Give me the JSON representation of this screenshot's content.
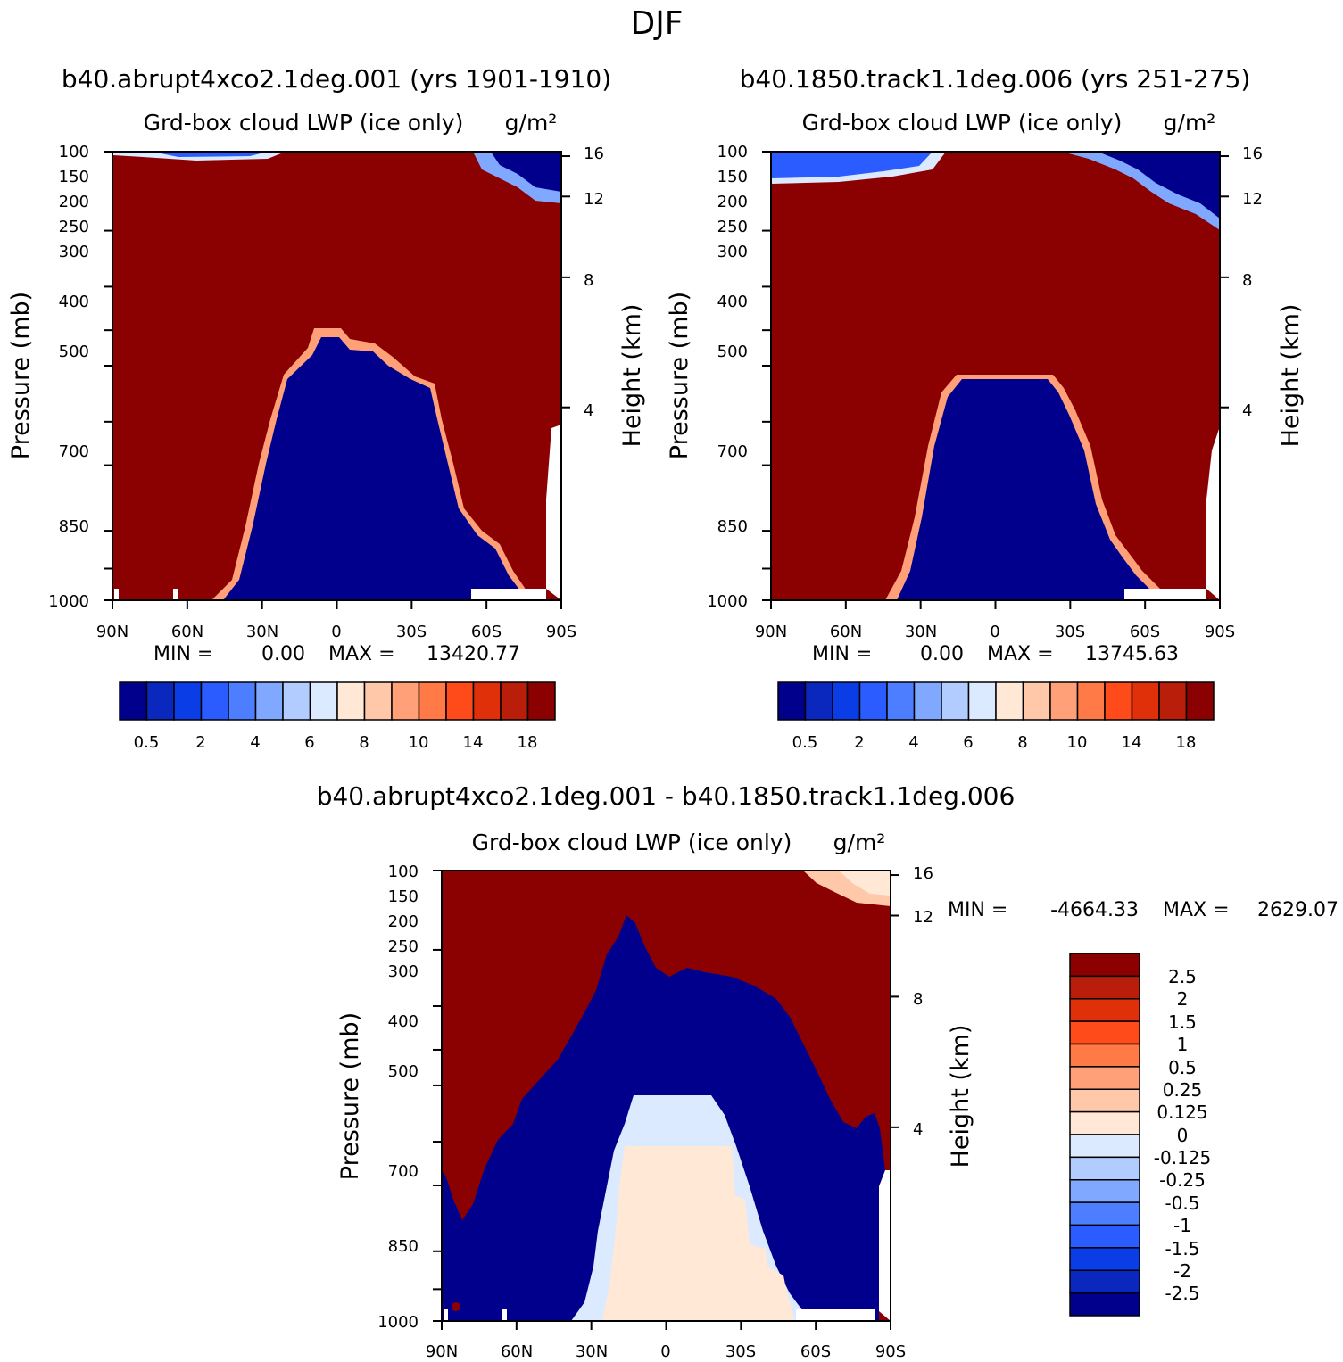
{
  "title": "DJF",
  "chart_data": [
    {
      "type": "heatmap",
      "id": "p1",
      "case_title": "b40.abrupt4xco2.1deg.001 (yrs 1901-1910)",
      "variable": "Grd-box cloud LWP (ice only)",
      "units": "g/m²",
      "ylabel": "Pressure (mb)",
      "ylabel_right": "Height (km)",
      "x_ticks": [
        "90N",
        "60N",
        "30N",
        "0",
        "30S",
        "60S",
        "90S"
      ],
      "y_ticks": [
        "100",
        "150",
        "200",
        "250",
        "300",
        "400",
        "500",
        "700",
        "850",
        "1000"
      ],
      "height_ticks": [
        "16",
        "12",
        "8",
        "4"
      ],
      "min_label": "MIN =",
      "min_value": "0.00",
      "max_label": "MAX =",
      "max_value": "13420.77",
      "colorbar_labels": [
        "0.5",
        "2",
        "4",
        "6",
        "8",
        "10",
        "14",
        "18"
      ]
    },
    {
      "type": "heatmap",
      "id": "p2",
      "case_title": "b40.1850.track1.1deg.006 (yrs 251-275)",
      "variable": "Grd-box cloud LWP (ice only)",
      "units": "g/m²",
      "ylabel": "Pressure (mb)",
      "ylabel_right": "Height (km)",
      "x_ticks": [
        "90N",
        "60N",
        "30N",
        "0",
        "30S",
        "60S",
        "90S"
      ],
      "y_ticks": [
        "100",
        "150",
        "200",
        "250",
        "300",
        "400",
        "500",
        "700",
        "850",
        "1000"
      ],
      "height_ticks": [
        "16",
        "12",
        "8",
        "4"
      ],
      "min_label": "MIN =",
      "min_value": "0.00",
      "max_label": "MAX =",
      "max_value": "13745.63",
      "colorbar_labels": [
        "0.5",
        "2",
        "4",
        "6",
        "8",
        "10",
        "14",
        "18"
      ]
    },
    {
      "type": "heatmap",
      "id": "p3",
      "case_title": "b40.abrupt4xco2.1deg.001 - b40.1850.track1.1deg.006",
      "variable": "Grd-box cloud LWP (ice only)",
      "units": "g/m²",
      "ylabel": "Pressure (mb)",
      "ylabel_right": "Height (km)",
      "x_ticks": [
        "90N",
        "60N",
        "30N",
        "0",
        "30S",
        "60S",
        "90S"
      ],
      "y_ticks": [
        "100",
        "150",
        "200",
        "250",
        "300",
        "400",
        "500",
        "700",
        "850",
        "1000"
      ],
      "height_ticks": [
        "16",
        "12",
        "8",
        "4"
      ],
      "min_label": "MIN =",
      "min_value": "-4664.33",
      "max_label": "MAX =",
      "max_value": "2629.07",
      "colorbar_labels": [
        "2.5",
        "2",
        "1.5",
        "1",
        "0.5",
        "0.25",
        "0.125",
        "0",
        "-0.125",
        "-0.25",
        "-0.5",
        "-1",
        "-1.5",
        "-2",
        "-2.5"
      ]
    }
  ],
  "palettes": {
    "sequential": [
      "#00008c",
      "#0a28be",
      "#0a3de6",
      "#2a5cff",
      "#4d7eff",
      "#80a8ff",
      "#b3ccff",
      "#dceaff",
      "#ffe8d6",
      "#ffc8a8",
      "#ffa078",
      "#ff7a46",
      "#ff4a1a",
      "#e0300a",
      "#b81e0a",
      "#8b0000"
    ],
    "diverging": [
      "#8b0000",
      "#b81e0a",
      "#e0300a",
      "#ff4a1a",
      "#ff7a46",
      "#ffa078",
      "#ffc8a8",
      "#ffe8d6",
      "#dceaff",
      "#b3ccff",
      "#80a8ff",
      "#4d7eff",
      "#2a5cff",
      "#0a3de6",
      "#0a28be",
      "#00008c"
    ]
  }
}
